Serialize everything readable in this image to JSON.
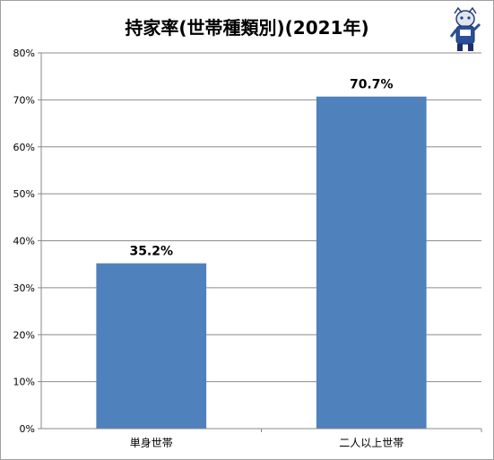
{
  "chart_data": {
    "type": "bar",
    "title": "持家率(世帯種類別)(2021年)",
    "categories": [
      "単身世帯",
      "二人以上世帯"
    ],
    "values": [
      35.2,
      70.7
    ],
    "data_labels": [
      "35.2%",
      "70.7%"
    ],
    "y_ticks": [
      "0%",
      "10%",
      "20%",
      "30%",
      "40%",
      "50%",
      "60%",
      "70%",
      "80%"
    ],
    "ylim": [
      0,
      80
    ],
    "grid": true,
    "bar_color": "#4f81bd"
  },
  "mascot": {
    "icon": "mascot-character-icon"
  }
}
